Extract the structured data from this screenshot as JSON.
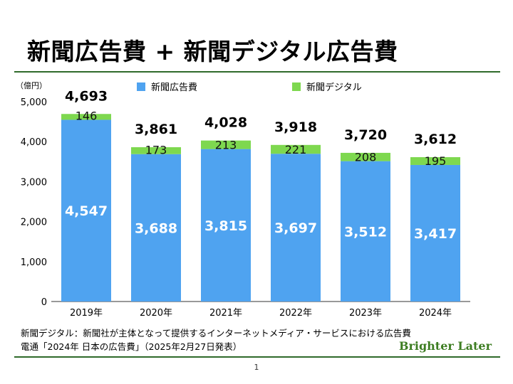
{
  "title": "新聞広告費 + 新聞デジタル広告費",
  "notes": {
    "line1": "新聞デジタル：新聞社が主体となって提供するインターネットメディア・サービスにおける広告費",
    "line2": "電通「2024年 日本の広告費」（2025年2月27日発表）"
  },
  "brand": "Brighter Later",
  "page_number": "1",
  "chart_data": {
    "type": "bar",
    "stacked": true,
    "unit_label": "（億円）",
    "categories": [
      "2019年",
      "2020年",
      "2021年",
      "2022年",
      "2023年",
      "2024年"
    ],
    "series": [
      {
        "name": "新聞広告費",
        "values": [
          4547,
          3688,
          3815,
          3697,
          3512,
          3417
        ],
        "color": "#4fa3f0"
      },
      {
        "name": "新聞デジタル",
        "values": [
          146,
          173,
          213,
          221,
          208,
          195
        ],
        "color": "#7ed84f"
      }
    ],
    "totals": [
      4693,
      3861,
      4028,
      3918,
      3720,
      3612
    ],
    "ylim": [
      0,
      5000
    ],
    "yticks": [
      0,
      1000,
      2000,
      3000,
      4000,
      5000
    ],
    "grid": false,
    "legend_position": "top"
  }
}
